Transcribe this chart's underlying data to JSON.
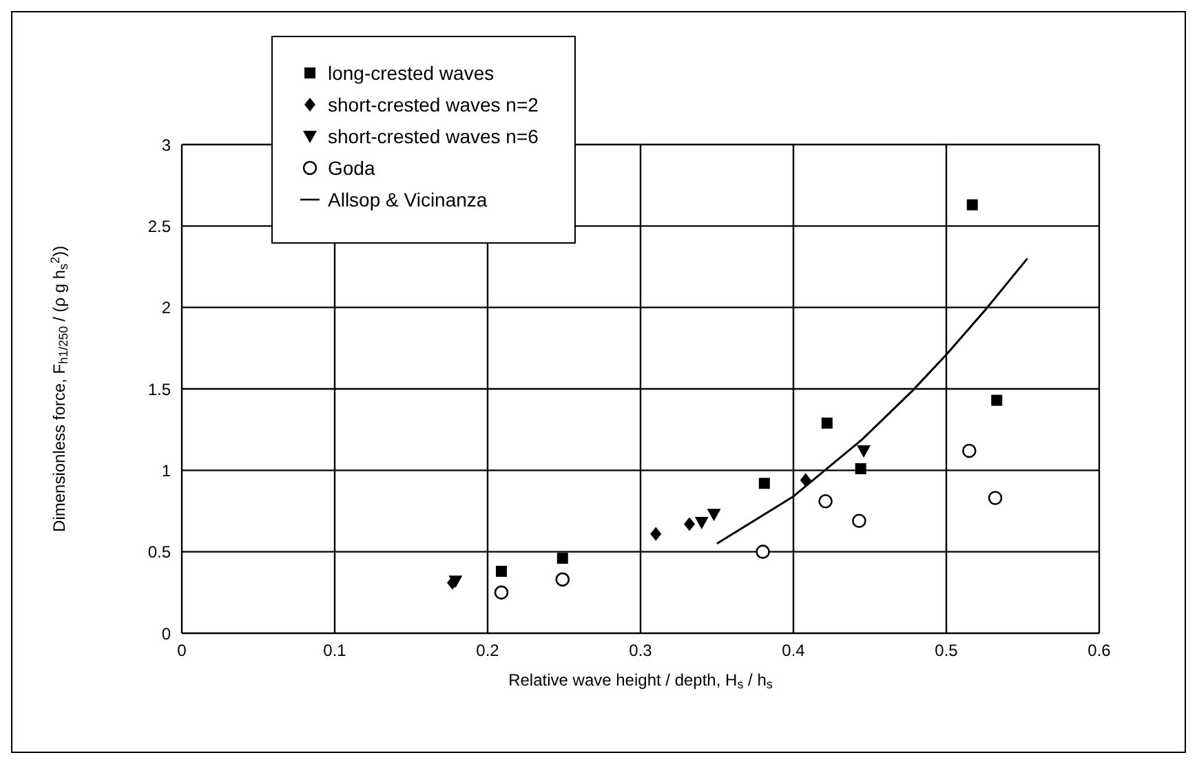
{
  "chart_data": {
    "type": "scatter",
    "xlabel": "Relative wave height / depth, H$_{s}$ / h$_{s}$",
    "ylabel": "Dimensionless force, F$_{h1/250}$ / (ρ g h$_{s}$$^{2}$))",
    "xlim": [
      0,
      0.6
    ],
    "xticks": [
      0,
      0.1,
      0.2,
      0.3,
      0.4,
      0.5,
      0.6
    ],
    "ylim": [
      0,
      3
    ],
    "yticks": [
      0,
      0.5,
      1,
      1.5,
      2,
      2.5,
      3
    ],
    "grid": true,
    "legend": "top left",
    "series": [
      {
        "name": "long-crested waves",
        "color": "#000000",
        "marker": "square",
        "x": [
          0.209,
          0.249,
          0.381,
          0.422,
          0.444,
          0.517,
          0.533
        ],
        "values": [
          0.38,
          0.46,
          0.92,
          1.29,
          1.01,
          2.63,
          1.43
        ]
      },
      {
        "name": "short-crested waves n=2",
        "color": "#000000",
        "marker": "diamond",
        "x": [
          0.177,
          0.31,
          0.332,
          0.408
        ],
        "values": [
          0.31,
          0.61,
          0.67,
          0.94
        ]
      },
      {
        "name": "short-crested waves n=6",
        "color": "#000000",
        "marker": "triangle",
        "x": [
          0.179,
          0.34,
          0.348,
          0.446
        ],
        "values": [
          0.32,
          0.68,
          0.73,
          1.12
        ]
      },
      {
        "name": "Goda",
        "color": "#000000",
        "marker": "circle",
        "x": [
          0.209,
          0.249,
          0.38,
          0.421,
          0.443,
          0.515,
          0.532
        ],
        "values": [
          0.25,
          0.33,
          0.5,
          0.81,
          0.69,
          1.12,
          0.83
        ]
      },
      {
        "name": "Allsop & Vicinanza",
        "color": "#000000",
        "type": "line",
        "x": [
          0.35,
          0.4,
          0.445,
          0.478,
          0.5,
          0.526,
          0.553
        ],
        "values": [
          0.55,
          0.84,
          1.19,
          1.49,
          1.71,
          1.99,
          2.3
        ]
      }
    ]
  }
}
